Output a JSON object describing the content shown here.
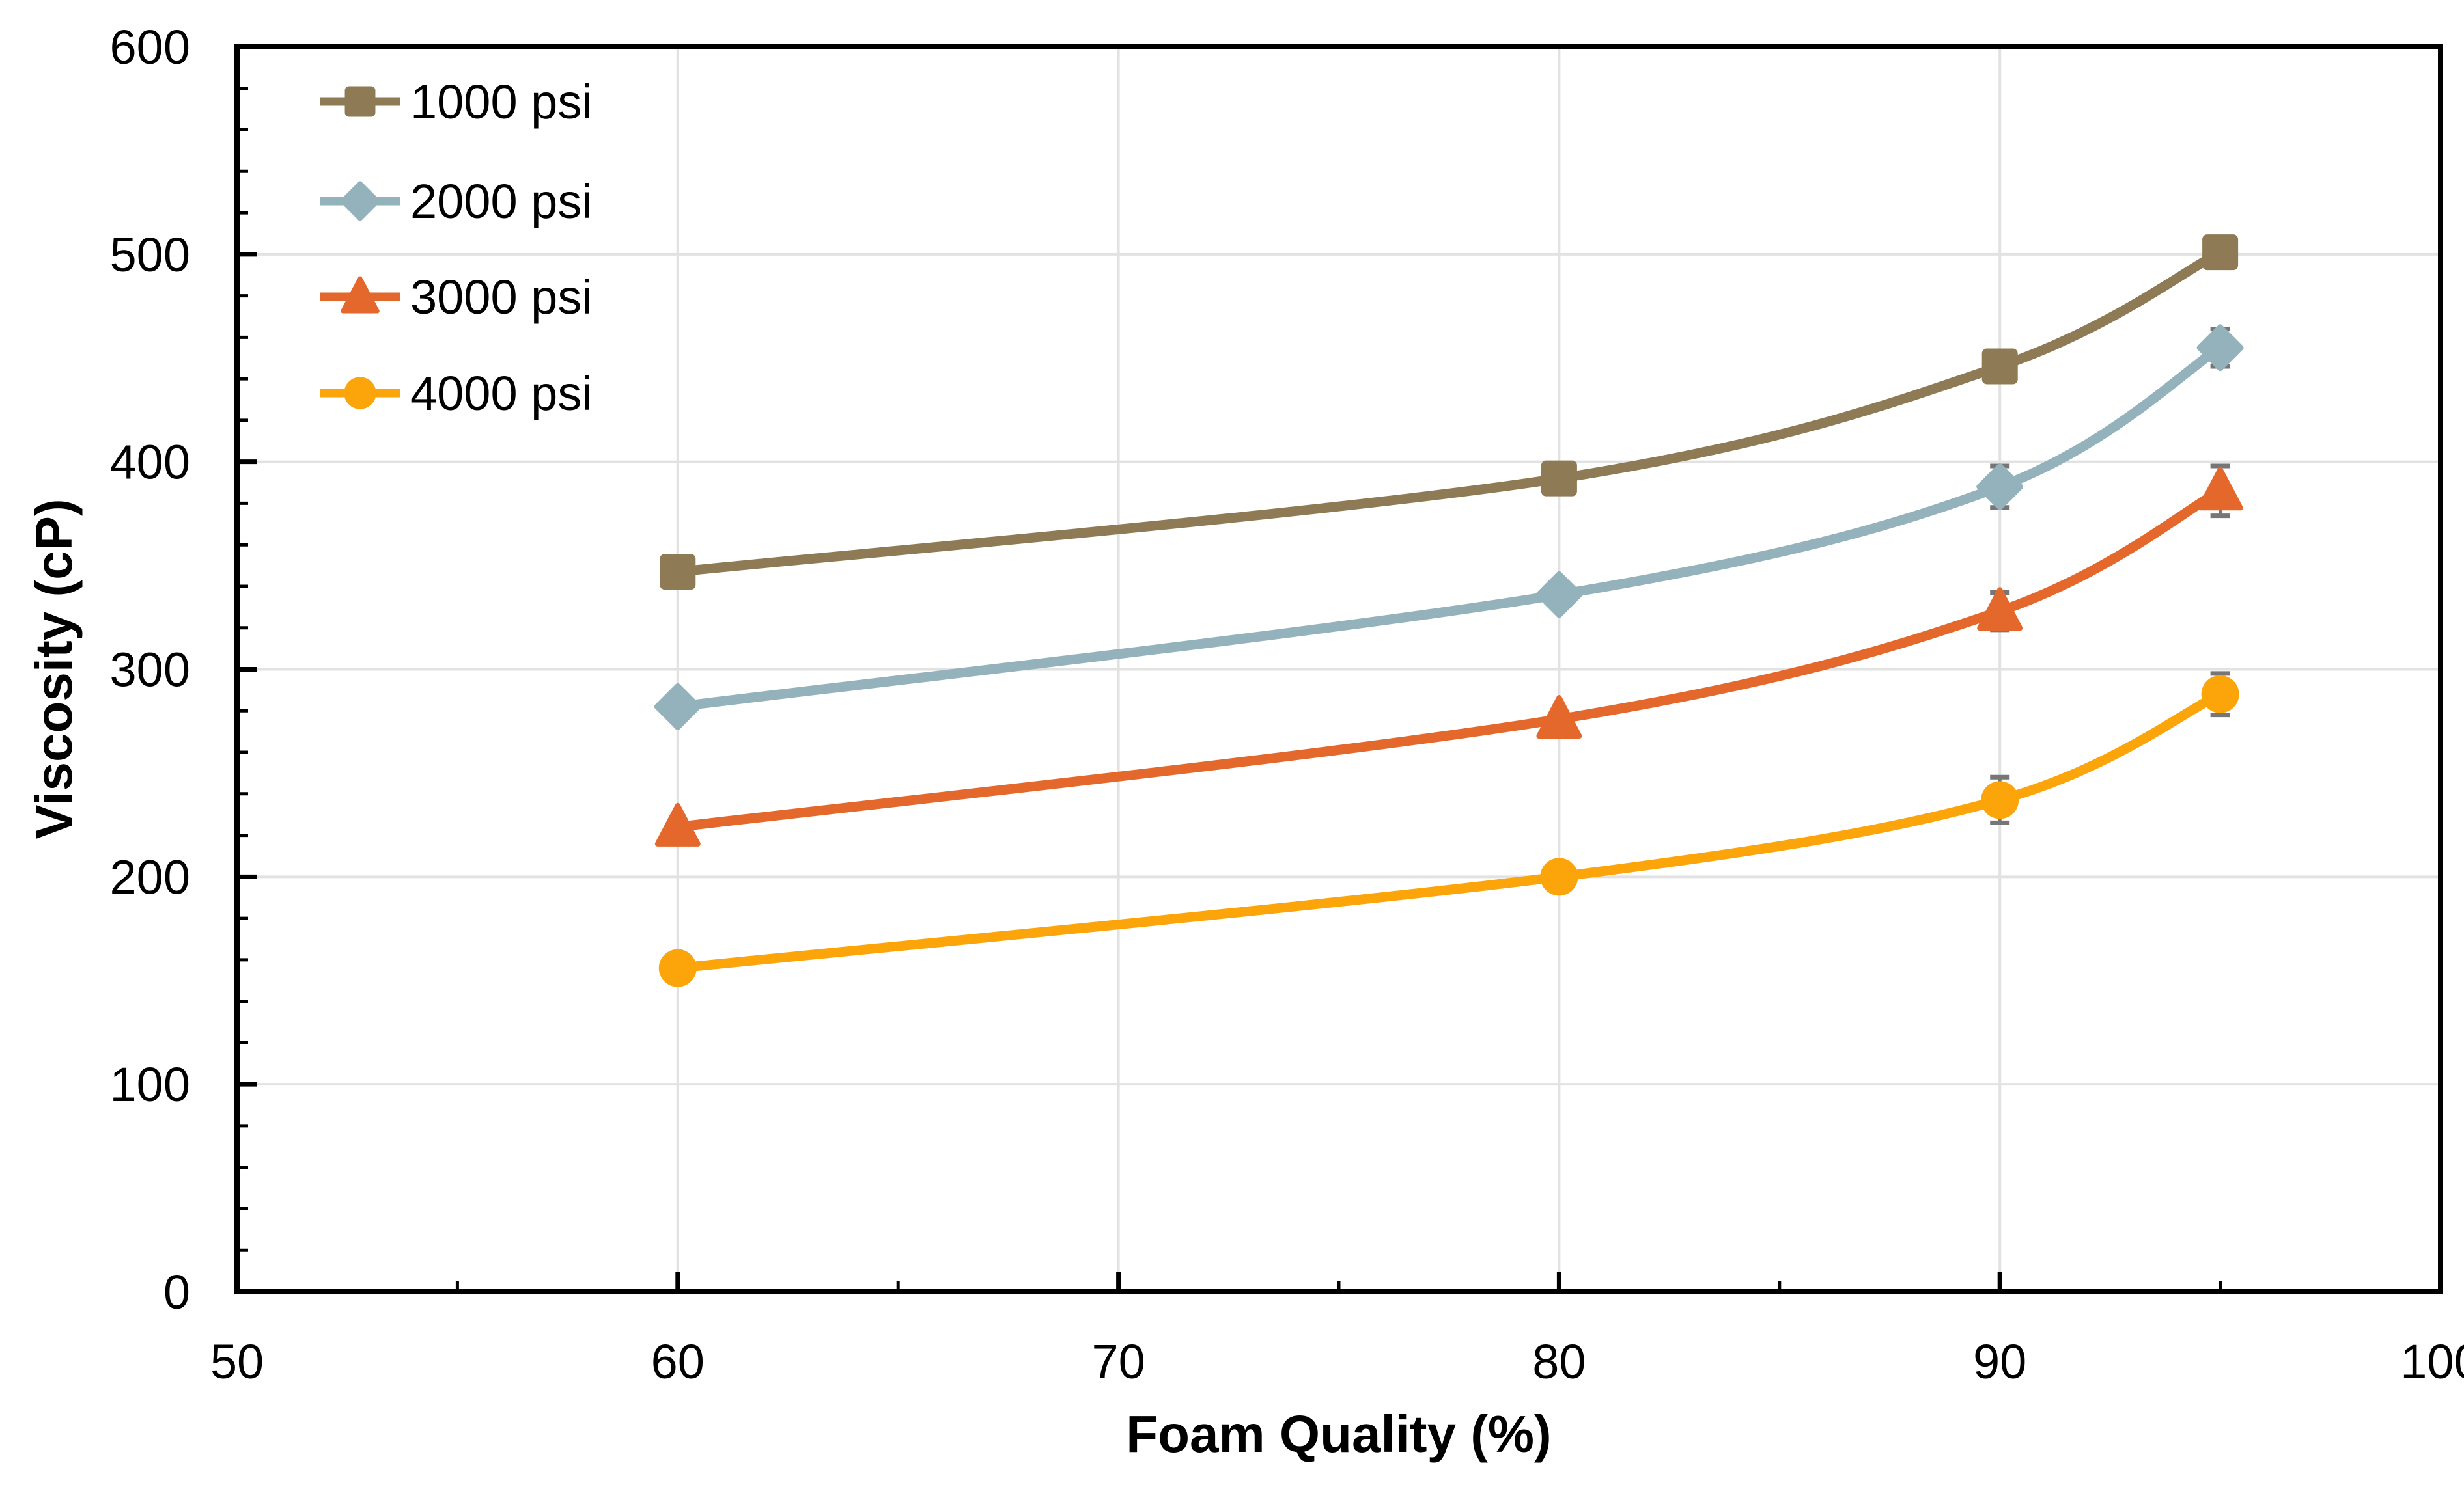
{
  "chart_data": {
    "type": "line",
    "title": "",
    "xlabel": "Foam Quality (%)",
    "ylabel": "Viscosity (cP)",
    "x": [
      60,
      80,
      90,
      95
    ],
    "xlim": [
      50,
      100
    ],
    "ylim": [
      0,
      600
    ],
    "x_major_ticks": [
      50,
      60,
      70,
      80,
      90,
      100
    ],
    "x_minor_ticks": [
      55,
      65,
      75,
      85,
      95
    ],
    "y_major_tick_step": 100,
    "y_minor_tick_step": 20,
    "grid": "major gridlines: horizontal every 100 cP, vertical every 10 %",
    "legend_position": "top-left inside plot area",
    "marker_style": "filled markers with connecting smoothed lines",
    "series": [
      {
        "name": "1000 psi",
        "marker": "square",
        "color": "#8E7B55",
        "values": [
          347,
          392,
          446,
          501
        ],
        "yerr": [
          0,
          0,
          0,
          0
        ]
      },
      {
        "name": "2000 psi",
        "marker": "diamond",
        "color": "#94B2BB",
        "values": [
          282,
          336,
          388,
          455
        ],
        "yerr": [
          0,
          0,
          10,
          9
        ]
      },
      {
        "name": "3000 psi",
        "marker": "triangle",
        "color": "#E4672B",
        "values": [
          224,
          276,
          328,
          386
        ],
        "yerr": [
          0,
          0,
          9,
          12
        ]
      },
      {
        "name": "4000 psi",
        "marker": "circle",
        "color": "#FCA50A",
        "values": [
          156,
          200,
          237,
          288
        ],
        "yerr": [
          0,
          0,
          11,
          10
        ]
      }
    ],
    "colors": {
      "background": "#FFFFFF",
      "axis": "#000000",
      "gridline": "#E2E2E2",
      "error_bar": "#767676",
      "text": "#000000"
    }
  }
}
